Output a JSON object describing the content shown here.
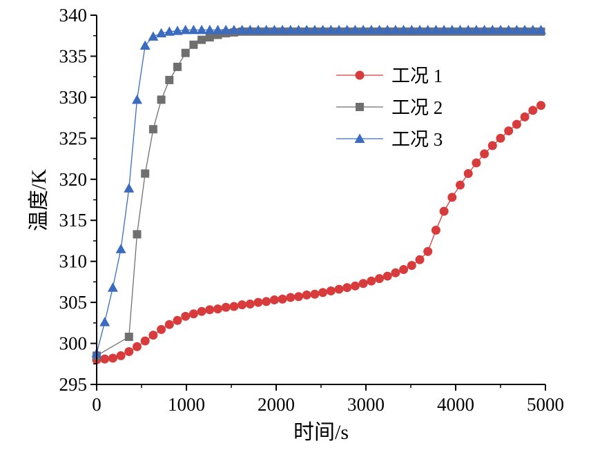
{
  "chart_data": {
    "type": "line",
    "xlabel": "时间/s",
    "ylabel": "温度/K",
    "xlim": [
      0,
      5000
    ],
    "ylim": [
      295,
      340
    ],
    "xticks": [
      "0",
      "1000",
      "2000",
      "3000",
      "4000",
      "5000"
    ],
    "yticks": [
      "295",
      "300",
      "305",
      "310",
      "315",
      "320",
      "325",
      "330",
      "335",
      "340"
    ],
    "grid": false,
    "legend_position": "top-right",
    "series": [
      {
        "name": "工况 1",
        "color": "#d83b3b",
        "marker": "circle",
        "x": [
          0,
          90,
          180,
          270,
          360,
          450,
          540,
          630,
          720,
          810,
          900,
          990,
          1080,
          1170,
          1260,
          1350,
          1440,
          1530,
          1620,
          1710,
          1800,
          1890,
          1980,
          2070,
          2160,
          2250,
          2340,
          2430,
          2520,
          2610,
          2700,
          2790,
          2880,
          2970,
          3060,
          3150,
          3240,
          3330,
          3420,
          3510,
          3600,
          3690,
          3780,
          3870,
          3960,
          4050,
          4140,
          4230,
          4320,
          4410,
          4500,
          4590,
          4680,
          4770,
          4860,
          4950
        ],
        "y": [
          298.0,
          298.1,
          298.2,
          298.5,
          299.0,
          299.6,
          300.3,
          301.0,
          301.7,
          302.3,
          302.8,
          303.3,
          303.6,
          303.9,
          304.1,
          304.2,
          304.4,
          304.5,
          304.7,
          304.8,
          305.0,
          305.1,
          305.3,
          305.4,
          305.6,
          305.7,
          305.9,
          306.0,
          306.2,
          306.4,
          306.6,
          306.8,
          307.0,
          307.3,
          307.6,
          307.9,
          308.2,
          308.6,
          309.0,
          309.5,
          310.2,
          311.2,
          313.8,
          316.1,
          317.8,
          319.3,
          320.7,
          322.0,
          323.1,
          324.1,
          325.0,
          325.9,
          326.7,
          327.6,
          328.4,
          329.0
        ]
      },
      {
        "name": "工况 2",
        "color": "#6f6f6f",
        "marker": "square",
        "x": [
          0,
          360,
          450,
          540,
          630,
          720,
          810,
          900,
          990,
          1080,
          1170,
          1260,
          1350,
          1440,
          1530,
          1620,
          1710,
          1800,
          1890,
          1980,
          2070,
          2160,
          2250,
          2340,
          2430,
          2520,
          2610,
          2700,
          2790,
          2880,
          2970,
          3060,
          3150,
          3240,
          3330,
          3420,
          3510,
          3600,
          3690,
          3780,
          3870,
          3960,
          4050,
          4140,
          4230,
          4320,
          4410,
          4500,
          4590,
          4680,
          4770,
          4860,
          4950
        ],
        "y": [
          298.5,
          300.8,
          313.3,
          320.7,
          326.1,
          329.7,
          332.1,
          333.7,
          335.4,
          336.4,
          337.0,
          337.3,
          337.6,
          337.8,
          337.9,
          338.0,
          338.0,
          338.0,
          338.0,
          338.0,
          338.0,
          338.0,
          338.0,
          338.0,
          338.0,
          338.0,
          338.0,
          338.0,
          338.0,
          338.0,
          338.0,
          338.0,
          338.0,
          338.0,
          338.0,
          338.0,
          338.0,
          338.0,
          338.0,
          338.0,
          338.0,
          338.0,
          338.0,
          338.0,
          338.0,
          338.0,
          338.0,
          338.0,
          338.0,
          338.0,
          338.0,
          338.0,
          338.0
        ]
      },
      {
        "name": "工况 3",
        "color": "#3a6bbf",
        "marker": "triangle",
        "x": [
          0,
          90,
          180,
          270,
          360,
          450,
          540,
          630,
          720,
          810,
          900,
          990,
          1080,
          1170,
          1260,
          1350,
          1440,
          1530,
          1620,
          1710,
          1800,
          1890,
          1980,
          2070,
          2160,
          2250,
          2340,
          2430,
          2520,
          2610,
          2700,
          2790,
          2880,
          2970,
          3060,
          3150,
          3240,
          3330,
          3420,
          3510,
          3600,
          3690,
          3780,
          3870,
          3960,
          4050,
          4140,
          4230,
          4320,
          4410,
          4500,
          4590,
          4680,
          4770,
          4860,
          4950
        ],
        "y": [
          298.8,
          302.6,
          306.8,
          311.5,
          318.9,
          329.7,
          336.3,
          337.4,
          337.8,
          338.0,
          338.1,
          338.2,
          338.2,
          338.2,
          338.2,
          338.2,
          338.2,
          338.2,
          338.2,
          338.2,
          338.2,
          338.2,
          338.2,
          338.2,
          338.2,
          338.2,
          338.2,
          338.2,
          338.2,
          338.2,
          338.2,
          338.2,
          338.2,
          338.2,
          338.2,
          338.2,
          338.2,
          338.2,
          338.2,
          338.2,
          338.2,
          338.2,
          338.2,
          338.2,
          338.2,
          338.2,
          338.2,
          338.2,
          338.2,
          338.2,
          338.2,
          338.2,
          338.2,
          338.2,
          338.2,
          338.2
        ]
      }
    ]
  }
}
